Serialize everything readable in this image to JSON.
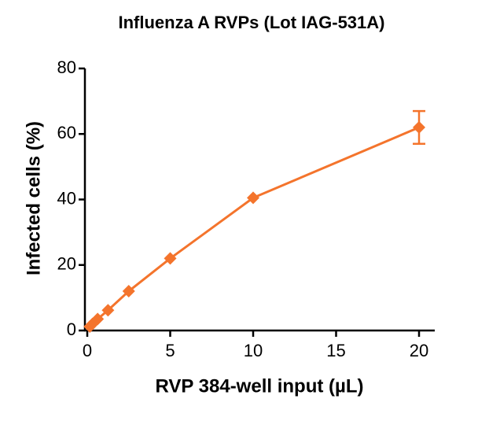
{
  "chart_data": {
    "type": "line",
    "title": "Influenza A RVPs (Lot IAG-531A)",
    "x_label": "RVP 384-well input (µL)",
    "y_label": "Infected cells (%)",
    "x": [
      0.156,
      0.3125,
      0.625,
      1.25,
      2.5,
      5,
      10,
      20
    ],
    "series": [
      {
        "name": "Influenza A RVPs",
        "color": "#f4742c",
        "values": [
          1.2,
          2,
          3.5,
          6.2,
          12,
          22,
          40.5,
          62
        ],
        "errors": [
          0,
          0,
          0,
          0,
          0,
          0,
          0,
          5
        ]
      }
    ],
    "xlim": [
      0,
      21
    ],
    "xticks": [
      0,
      5,
      10,
      15,
      20
    ],
    "ylim": [
      0,
      80
    ],
    "yticks": [
      0,
      20,
      40,
      60,
      80
    ]
  }
}
